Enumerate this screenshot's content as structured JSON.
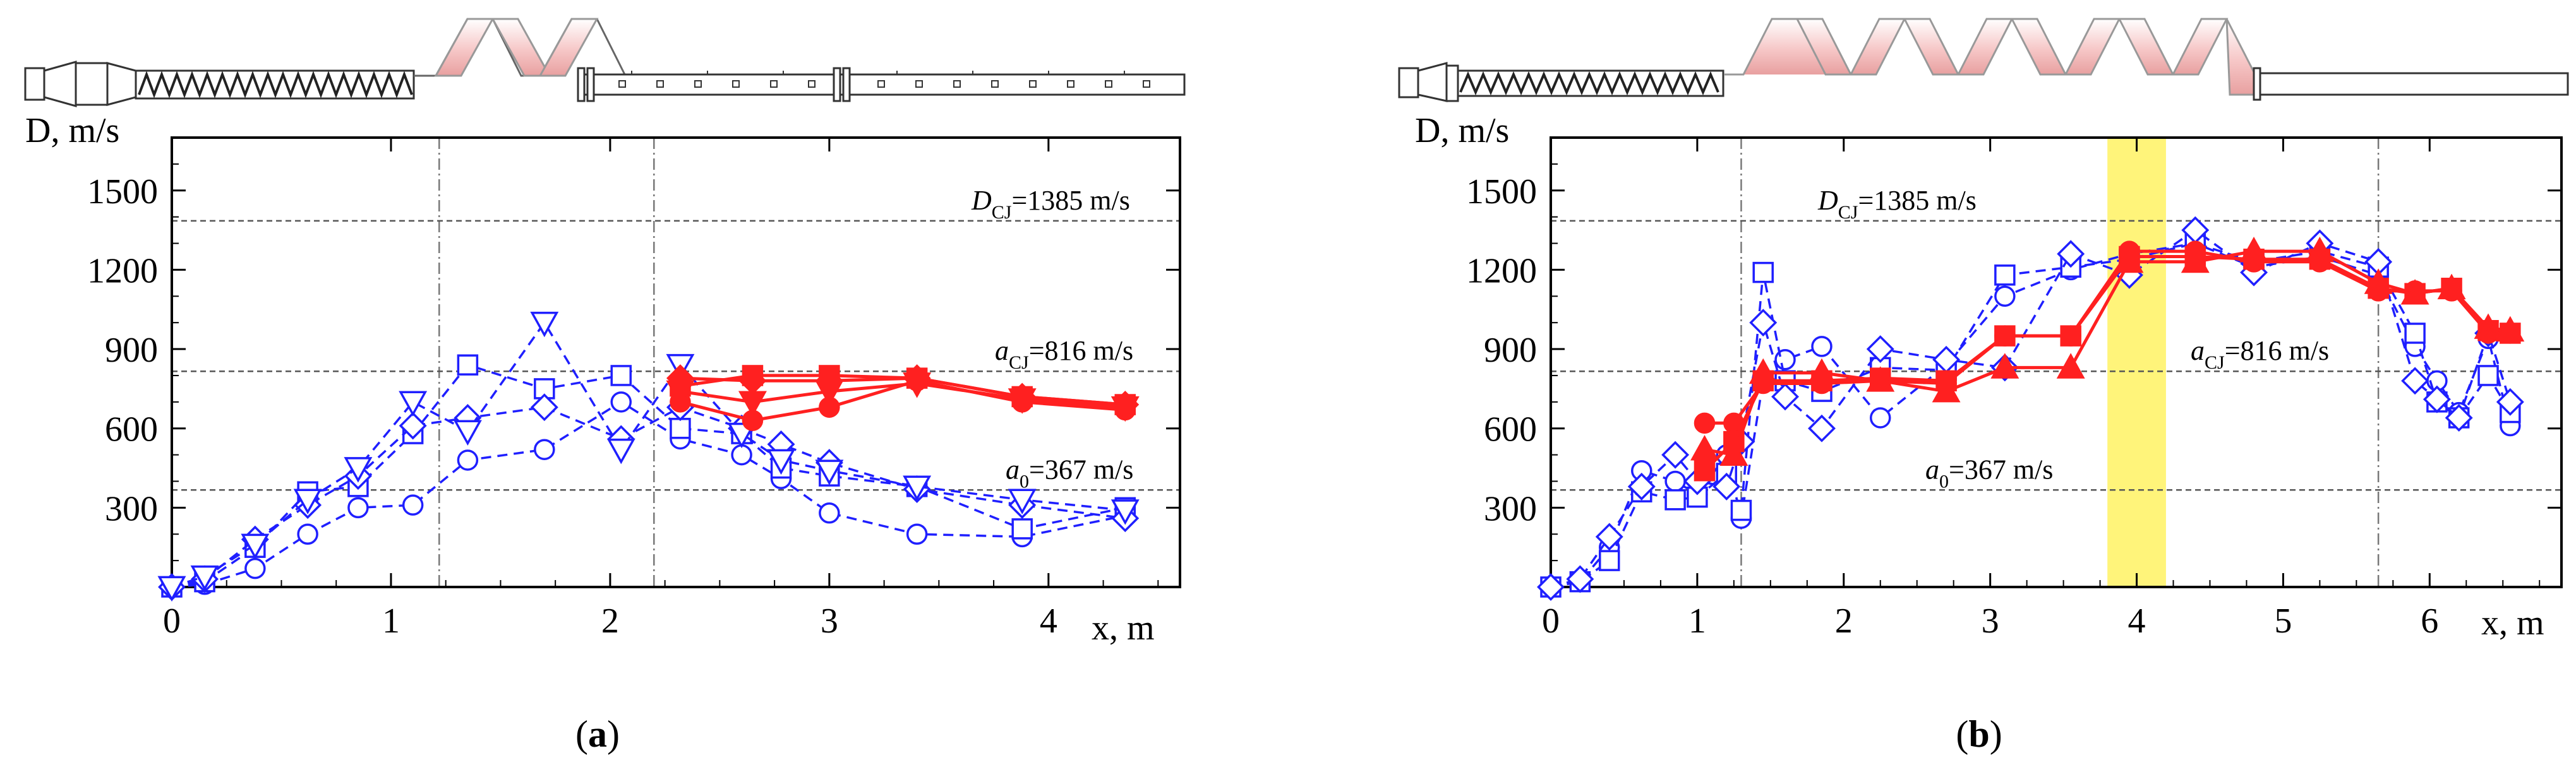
{
  "chart_data": [
    {
      "id": "a",
      "type": "line",
      "caption_letter": "a",
      "caption_open": "(",
      "caption_close": ")",
      "xlabel": "x, m",
      "ylabel": "D, m/s",
      "xlim": [
        0,
        4.6
      ],
      "ylim": [
        0,
        1700
      ],
      "xticks": [
        "0",
        "1",
        "2",
        "3",
        "4"
      ],
      "yticks": [
        "300",
        "600",
        "900",
        "1200",
        "1500"
      ],
      "vlines": [
        1.22,
        2.2
      ],
      "highlight": null,
      "reference_lines": [
        {
          "value": 1385,
          "main": "D",
          "sub": "CJ",
          "rest": "=1385 m/s"
        },
        {
          "value": 816,
          "main": "a",
          "sub": "CJ",
          "rest": "=816 m/s"
        },
        {
          "value": 367,
          "main": "a",
          "sub": "0",
          "rest": "=367 m/s"
        }
      ],
      "series": [
        {
          "name": "blue-circle",
          "color": "#1f1fff",
          "style": "dashed",
          "marker": "circle",
          "filled": false,
          "x": [
            0,
            0.15,
            0.38,
            0.62,
            0.85,
            1.1,
            1.35,
            1.7,
            2.05,
            2.32,
            2.6,
            2.78,
            3.0,
            3.4,
            3.88,
            4.35
          ],
          "y": [
            0,
            10,
            70,
            200,
            300,
            310,
            480,
            520,
            700,
            560,
            500,
            410,
            280,
            200,
            190,
            270
          ]
        },
        {
          "name": "blue-square",
          "color": "#1f1fff",
          "style": "dashed",
          "marker": "square",
          "filled": false,
          "x": [
            0,
            0.15,
            0.38,
            0.62,
            0.85,
            1.1,
            1.35,
            1.7,
            2.05,
            2.32,
            2.6,
            2.78,
            3.0,
            3.4,
            3.88,
            4.35
          ],
          "y": [
            0,
            20,
            150,
            360,
            380,
            580,
            840,
            750,
            800,
            600,
            580,
            450,
            420,
            380,
            220,
            300
          ]
        },
        {
          "name": "blue-diamond",
          "color": "#1f1fff",
          "style": "dashed",
          "marker": "diamond",
          "filled": false,
          "x": [
            0,
            0.15,
            0.38,
            0.62,
            0.85,
            1.1,
            1.35,
            1.7,
            2.05,
            2.32,
            2.6,
            2.78,
            3.0,
            3.4,
            3.88,
            4.35
          ],
          "y": [
            0,
            30,
            180,
            310,
            420,
            610,
            640,
            680,
            560,
            680,
            600,
            540,
            470,
            370,
            310,
            260
          ]
        },
        {
          "name": "blue-triangle-down",
          "color": "#1f1fff",
          "style": "dashed",
          "marker": "triangle-down",
          "filled": false,
          "x": [
            0,
            0.15,
            0.38,
            0.62,
            0.85,
            1.1,
            1.35,
            1.7,
            2.05,
            2.32,
            2.6,
            2.78,
            3.0,
            3.4,
            3.88,
            4.35
          ],
          "y": [
            0,
            40,
            160,
            330,
            450,
            700,
            590,
            1000,
            520,
            840,
            580,
            480,
            440,
            380,
            330,
            290
          ]
        },
        {
          "name": "red-circle",
          "color": "#ff2020",
          "style": "solid",
          "marker": "circle",
          "filled": true,
          "x": [
            2.32,
            2.65,
            3.0,
            3.4,
            3.88,
            4.35
          ],
          "y": [
            700,
            630,
            680,
            780,
            700,
            670
          ]
        },
        {
          "name": "red-square",
          "color": "#ff2020",
          "style": "solid",
          "marker": "square",
          "filled": true,
          "x": [
            2.32,
            2.65,
            3.0,
            3.4,
            3.88,
            4.35
          ],
          "y": [
            760,
            800,
            800,
            790,
            720,
            690
          ]
        },
        {
          "name": "red-triangle-down",
          "color": "#ff2020",
          "style": "solid",
          "marker": "triangle-down",
          "filled": true,
          "x": [
            2.32,
            2.65,
            3.0,
            3.4,
            3.88,
            4.35
          ],
          "y": [
            740,
            700,
            740,
            770,
            710,
            680
          ]
        },
        {
          "name": "red-diamond",
          "color": "#ff2020",
          "style": "solid",
          "marker": "diamond",
          "filled": true,
          "x": [
            2.32,
            2.65,
            3.0,
            3.4,
            3.88,
            4.35
          ],
          "y": [
            790,
            780,
            780,
            790,
            720,
            690
          ]
        }
      ]
    },
    {
      "id": "b",
      "type": "line",
      "caption_letter": "b",
      "caption_open": "(",
      "caption_close": ")",
      "xlabel": "x, m",
      "ylabel": "D, m/s",
      "xlim": [
        0,
        6.9
      ],
      "ylim": [
        0,
        1700
      ],
      "xticks": [
        "0",
        "1",
        "2",
        "3",
        "4",
        "5",
        "6"
      ],
      "yticks": [
        "300",
        "600",
        "900",
        "1200",
        "1500"
      ],
      "vlines": [
        1.3,
        5.65
      ],
      "highlight": [
        3.8,
        4.2
      ],
      "highlight_color": "#fff47a",
      "reference_lines": [
        {
          "value": 1385,
          "main": "D",
          "sub": "CJ",
          "rest": "=1385 m/s"
        },
        {
          "value": 816,
          "main": "a",
          "sub": "CJ",
          "rest": "=816 m/s"
        },
        {
          "value": 367,
          "main": "a",
          "sub": "0",
          "rest": "=367 m/s"
        }
      ],
      "series": [
        {
          "name": "blue-circle",
          "color": "#1f1fff",
          "style": "dashed",
          "marker": "circle",
          "filled": false,
          "x": [
            0,
            0.2,
            0.4,
            0.62,
            0.85,
            1.0,
            1.2,
            1.3,
            1.45,
            1.6,
            1.85,
            2.25,
            2.7,
            3.1,
            3.55,
            3.95,
            4.4,
            4.8,
            5.25,
            5.65,
            5.9,
            6.05,
            6.2,
            6.4,
            6.55
          ],
          "y": [
            0,
            20,
            150,
            440,
            400,
            350,
            500,
            260,
            780,
            860,
            910,
            640,
            840,
            1100,
            1200,
            1260,
            1300,
            1210,
            1250,
            1180,
            910,
            780,
            660,
            940,
            610
          ]
        },
        {
          "name": "blue-square",
          "color": "#1f1fff",
          "style": "dashed",
          "marker": "square",
          "filled": false,
          "x": [
            0,
            0.2,
            0.4,
            0.62,
            0.85,
            1.0,
            1.2,
            1.3,
            1.45,
            1.6,
            1.85,
            2.25,
            2.7,
            3.1,
            3.55,
            3.95,
            4.4,
            4.8,
            5.25,
            5.65,
            5.9,
            6.05,
            6.2,
            6.4,
            6.55
          ],
          "y": [
            0,
            20,
            100,
            360,
            330,
            340,
            430,
            290,
            1190,
            780,
            740,
            830,
            820,
            1180,
            1210,
            1240,
            1300,
            1230,
            1270,
            1210,
            960,
            700,
            640,
            800,
            660
          ]
        },
        {
          "name": "blue-diamond",
          "color": "#1f1fff",
          "style": "dashed",
          "marker": "diamond",
          "filled": false,
          "x": [
            0,
            0.2,
            0.4,
            0.62,
            0.85,
            1.0,
            1.2,
            1.3,
            1.45,
            1.6,
            1.85,
            2.25,
            2.7,
            3.1,
            3.55,
            3.95,
            4.4,
            4.8,
            5.25,
            5.65,
            5.9,
            6.05,
            6.2,
            6.4,
            6.55
          ],
          "y": [
            0,
            30,
            190,
            380,
            500,
            400,
            380,
            550,
            1000,
            720,
            600,
            900,
            860,
            830,
            1260,
            1180,
            1350,
            1190,
            1300,
            1230,
            780,
            710,
            640,
            960,
            700
          ]
        },
        {
          "name": "red-circle",
          "color": "#ff2020",
          "style": "solid",
          "marker": "circle",
          "filled": true,
          "x": [
            1.05,
            1.25,
            1.45,
            1.85,
            2.25,
            2.7,
            3.1,
            3.55,
            3.95,
            4.4,
            4.8,
            5.25,
            5.65,
            5.9,
            6.15,
            6.4,
            6.55
          ],
          "y": [
            620,
            620,
            770,
            770,
            780,
            770,
            950,
            950,
            1270,
            1270,
            1230,
            1230,
            1120,
            1120,
            1120,
            960,
            960
          ]
        },
        {
          "name": "red-square",
          "color": "#ff2020",
          "style": "solid",
          "marker": "square",
          "filled": true,
          "x": [
            1.05,
            1.25,
            1.45,
            1.85,
            2.25,
            2.7,
            3.1,
            3.55,
            3.95,
            4.4,
            4.8,
            5.25,
            5.65,
            5.9,
            6.15,
            6.4,
            6.55
          ],
          "y": [
            440,
            550,
            780,
            780,
            790,
            780,
            950,
            950,
            1250,
            1250,
            1240,
            1240,
            1130,
            1110,
            1130,
            970,
            960
          ]
        },
        {
          "name": "red-triangle",
          "color": "#ff2020",
          "style": "solid",
          "marker": "triangle",
          "filled": true,
          "x": [
            1.05,
            1.25,
            1.45,
            1.85,
            2.25,
            2.7,
            3.1,
            3.55,
            3.95,
            4.4,
            4.8,
            5.25,
            5.65,
            5.9,
            6.15,
            6.4,
            6.55
          ],
          "y": [
            520,
            500,
            810,
            810,
            780,
            740,
            830,
            830,
            1230,
            1230,
            1270,
            1270,
            1150,
            1110,
            1130,
            980,
            970
          ]
        }
      ]
    }
  ]
}
